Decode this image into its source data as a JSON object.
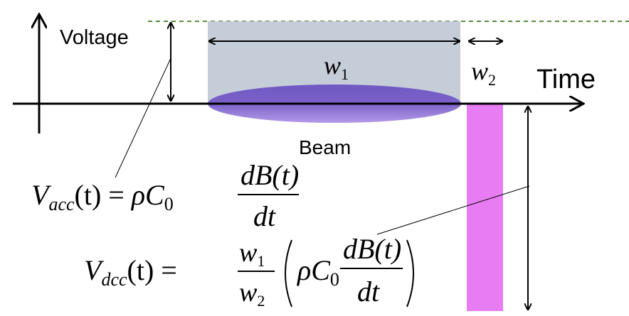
{
  "labels": {
    "voltage_axis": "Voltage",
    "time_axis": "Time",
    "beam": "Beam",
    "w1_base": "w",
    "w1_sub": "1",
    "w2_base": "w",
    "w2_sub": "2"
  },
  "equations": {
    "acc": {
      "lhs_base": "V",
      "lhs_sub": "acc",
      "lhs_arg": "(t) = ",
      "coef": "ρC",
      "coef_sub": "0",
      "numerator": "dB(t)",
      "denominator": "dt"
    },
    "dcc": {
      "lhs_base": "V",
      "lhs_sub": "dcc",
      "lhs_arg": "(t) = ",
      "frac_num_base": "w",
      "frac_num_sub": "1",
      "frac_den_base": "w",
      "frac_den_sub": "2",
      "coef": "ρC",
      "coef_sub": "0",
      "numerator": "dB(t)",
      "denominator": "dt"
    }
  },
  "colors": {
    "axis": "#000000",
    "window_fill": "#c5cdd9",
    "beam_fill": "#7b62c8",
    "beam_light": "#a78fe0",
    "pulse_fill": "#e87cf2",
    "dashed_line": "#5a8a3a"
  }
}
